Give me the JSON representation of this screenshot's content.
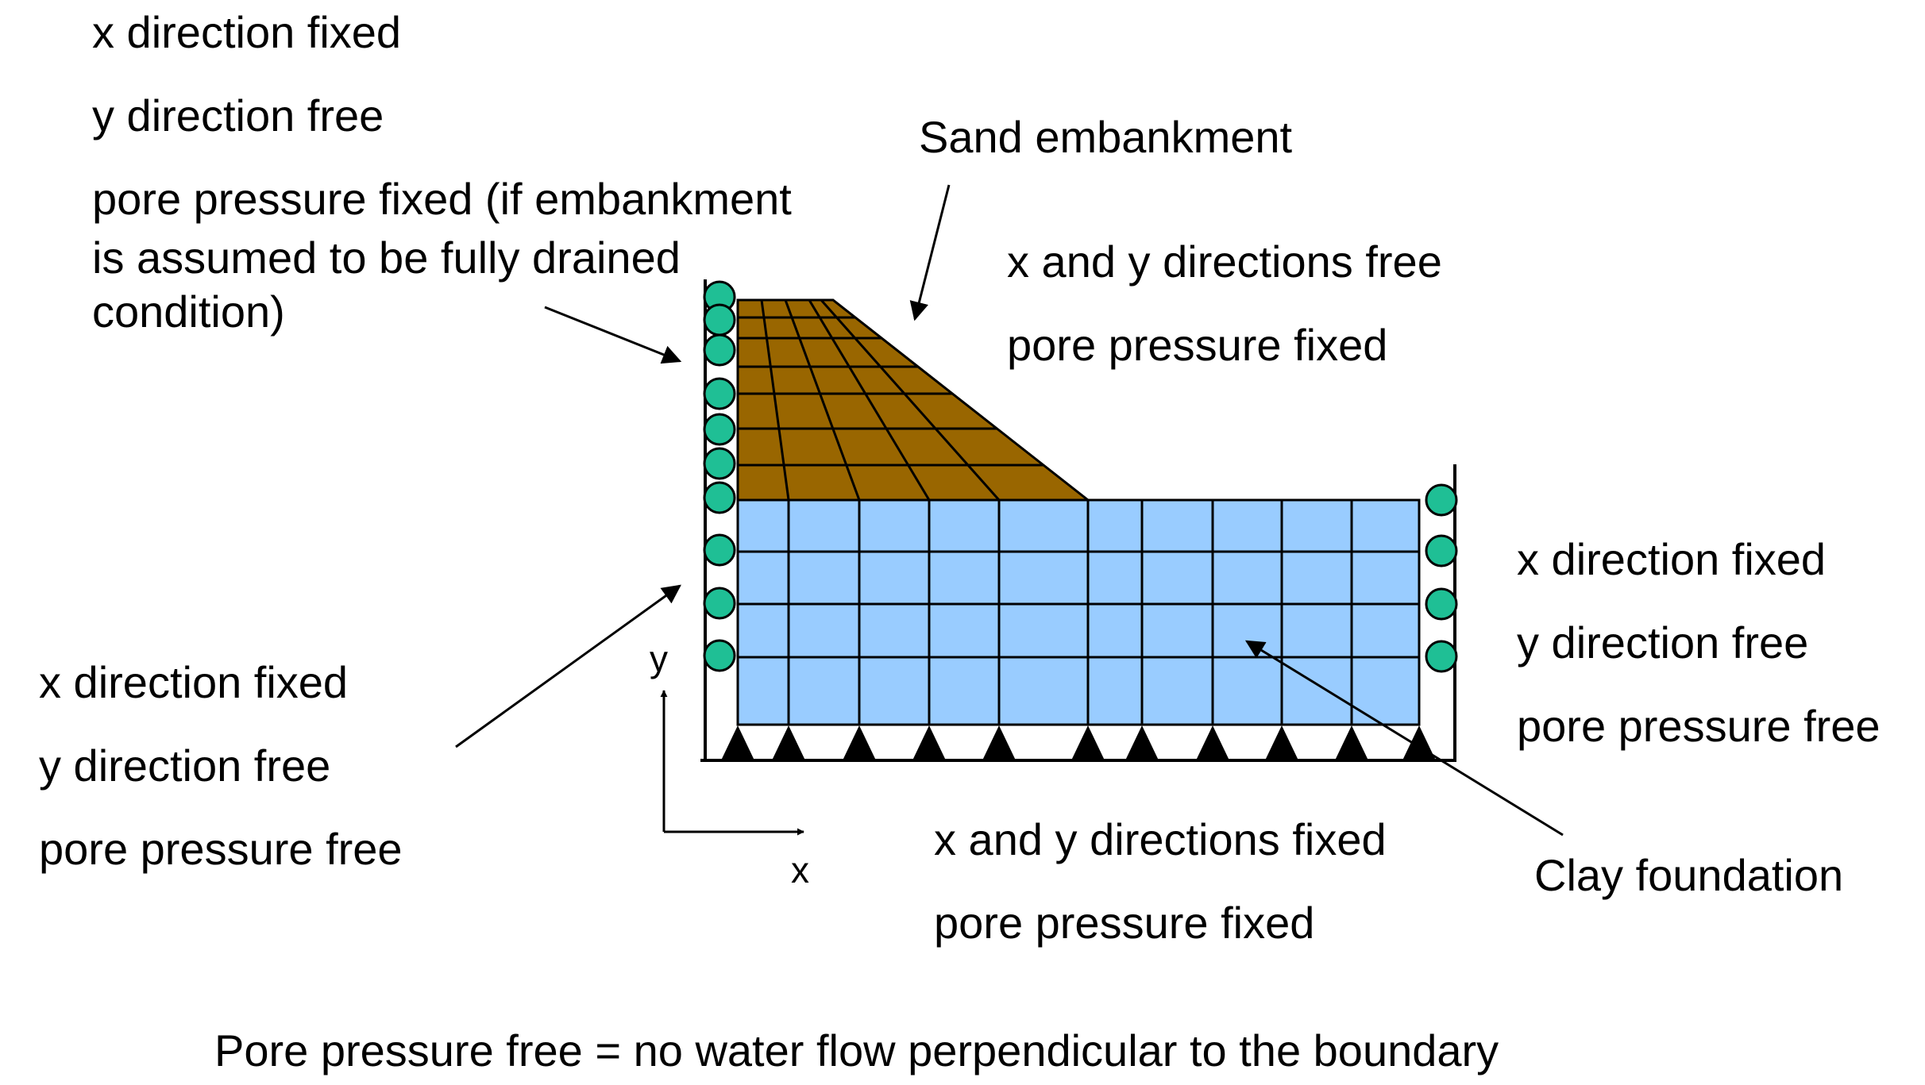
{
  "colors": {
    "sand": "#996600",
    "clay": "#99ccff",
    "roller": "#1fbf95",
    "line": "#000000"
  },
  "labels": {
    "top_left": [
      "x direction fixed",
      "y direction free",
      "pore pressure fixed (if embankment",
      "is assumed to be fully drained",
      "condition)"
    ],
    "sand_embankment": "Sand embankment",
    "top_right": [
      "x and y directions free",
      "pore pressure fixed"
    ],
    "right": [
      "x direction fixed",
      "y direction free",
      "pore pressure free"
    ],
    "bottom_left": [
      "x direction fixed",
      "y direction free",
      "pore pressure free"
    ],
    "bottom": [
      "x and y directions fixed",
      "pore pressure fixed"
    ],
    "clay_foundation": "Clay foundation",
    "axis_x": "x",
    "axis_y": "y",
    "footnote": "Pore pressure free = no water flow perpendicular to the boundary"
  },
  "icons": {
    "roller_support": "circle-roller-icon",
    "pin_support": "triangle-pin-icon",
    "axis_arrows": "arrow-icon"
  }
}
